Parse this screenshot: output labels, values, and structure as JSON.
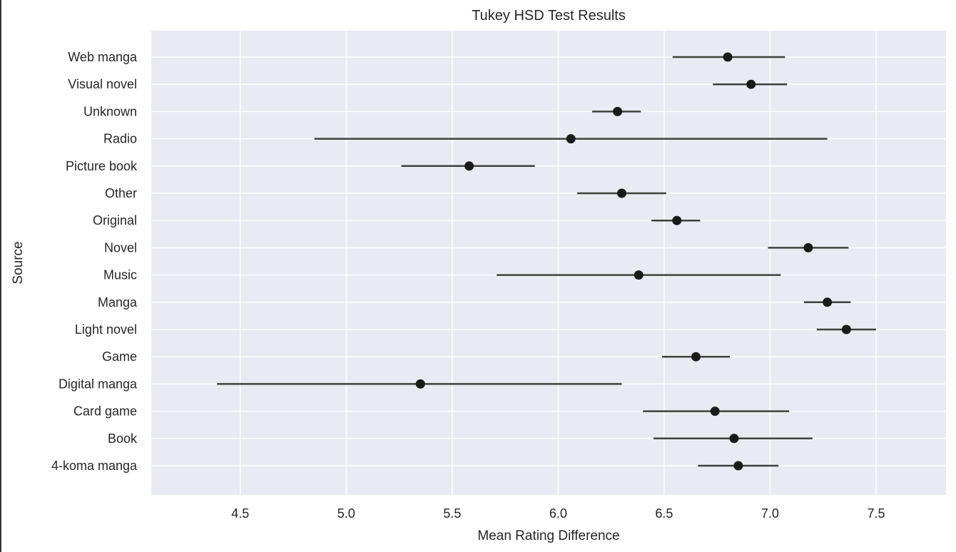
{
  "chart_data": {
    "type": "scatter",
    "title": "Tukey HSD Test Results",
    "xlabel": "Mean Rating Difference",
    "ylabel": "Source",
    "xlim": [
      4.08,
      7.83
    ],
    "xticks": [
      "4.5",
      "5.0",
      "5.5",
      "6.0",
      "6.5",
      "7.0",
      "7.5"
    ],
    "grid": true,
    "legend": "none",
    "colors": {
      "background": "#eaeaf2",
      "grid": "#ffffff",
      "marker": "#1a1a1a",
      "errorbar": "#404040"
    },
    "categories": [
      "Web manga",
      "Visual novel",
      "Unknown",
      "Radio",
      "Picture book",
      "Other",
      "Original",
      "Novel",
      "Music",
      "Manga",
      "Light novel",
      "Game",
      "Digital manga",
      "Card game",
      "Book",
      "4-koma manga"
    ],
    "points": [
      {
        "label": "Web manga",
        "mean": 6.8,
        "lower": 6.54,
        "upper": 7.07
      },
      {
        "label": "Visual novel",
        "mean": 6.91,
        "lower": 6.73,
        "upper": 7.08
      },
      {
        "label": "Unknown",
        "mean": 6.28,
        "lower": 6.16,
        "upper": 6.39
      },
      {
        "label": "Radio",
        "mean": 6.06,
        "lower": 4.85,
        "upper": 7.27
      },
      {
        "label": "Picture book",
        "mean": 5.58,
        "lower": 5.26,
        "upper": 5.89
      },
      {
        "label": "Other",
        "mean": 6.3,
        "lower": 6.09,
        "upper": 6.51
      },
      {
        "label": "Original",
        "mean": 6.56,
        "lower": 6.44,
        "upper": 6.67
      },
      {
        "label": "Novel",
        "mean": 7.18,
        "lower": 6.99,
        "upper": 7.37
      },
      {
        "label": "Music",
        "mean": 6.38,
        "lower": 5.71,
        "upper": 7.05
      },
      {
        "label": "Manga",
        "mean": 7.27,
        "lower": 7.16,
        "upper": 7.38
      },
      {
        "label": "Light novel",
        "mean": 7.36,
        "lower": 7.22,
        "upper": 7.5
      },
      {
        "label": "Game",
        "mean": 6.65,
        "lower": 6.49,
        "upper": 6.81
      },
      {
        "label": "Digital manga",
        "mean": 5.35,
        "lower": 4.39,
        "upper": 6.3
      },
      {
        "label": "Card game",
        "mean": 6.74,
        "lower": 6.4,
        "upper": 7.09
      },
      {
        "label": "Book",
        "mean": 6.83,
        "lower": 6.45,
        "upper": 7.2
      },
      {
        "label": "4-koma manga",
        "mean": 6.85,
        "lower": 6.66,
        "upper": 7.04
      }
    ]
  }
}
